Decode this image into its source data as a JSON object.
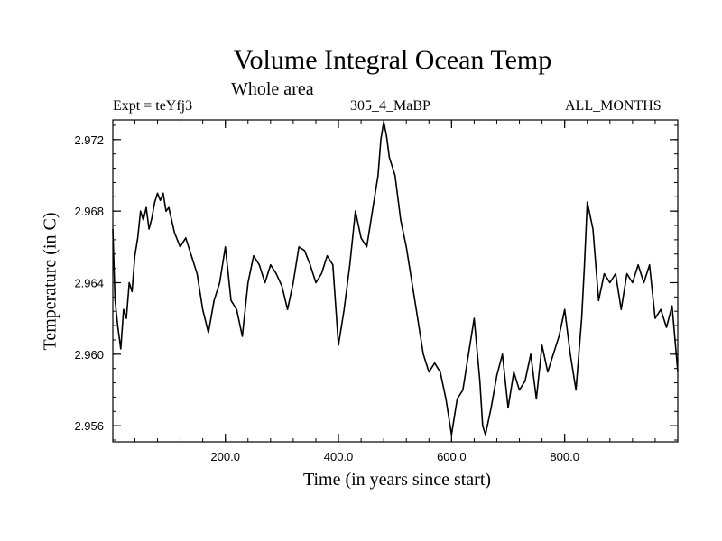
{
  "colors": {
    "line": "#000000",
    "axes": "#000000",
    "background": "#ffffff"
  },
  "chart_data": {
    "type": "line",
    "title": "Volume Integral Ocean Temp",
    "subtitle": "Whole area",
    "expt_label": "Expt = teYfj3",
    "run_label": "305_4_MaBP",
    "months_label": "ALL_MONTHS",
    "xlabel": "Time (in years since start)",
    "ylabel": "Temperature (in C)",
    "xlim": [
      1,
      1000
    ],
    "ylim": [
      2.9551,
      2.9731
    ],
    "xticks": [
      200,
      400,
      600,
      800
    ],
    "xtick_labels": [
      "200.0",
      "400.0",
      "600.0",
      "800.0"
    ],
    "yticks": [
      2.956,
      2.96,
      2.964,
      2.968,
      2.972
    ],
    "ytick_labels": [
      "2.956",
      "2.960",
      "2.964",
      "2.968",
      "2.972"
    ],
    "grid": false,
    "series": [
      {
        "name": "Volume Integral Ocean Temp",
        "x": [
          1,
          5,
          10,
          15,
          20,
          25,
          30,
          35,
          40,
          45,
          50,
          55,
          60,
          65,
          70,
          75,
          80,
          85,
          90,
          95,
          100,
          110,
          120,
          130,
          140,
          150,
          160,
          170,
          180,
          190,
          200,
          210,
          220,
          230,
          240,
          250,
          260,
          270,
          280,
          290,
          300,
          310,
          320,
          330,
          340,
          350,
          360,
          370,
          380,
          390,
          400,
          410,
          420,
          430,
          440,
          450,
          460,
          470,
          475,
          480,
          485,
          490,
          500,
          510,
          520,
          530,
          540,
          550,
          560,
          570,
          580,
          590,
          600,
          610,
          620,
          630,
          640,
          650,
          655,
          660,
          670,
          680,
          690,
          700,
          710,
          720,
          730,
          740,
          750,
          760,
          770,
          780,
          790,
          800,
          810,
          820,
          830,
          835,
          840,
          850,
          860,
          870,
          880,
          890,
          900,
          910,
          920,
          930,
          940,
          950,
          960,
          970,
          980,
          990,
          1000
        ],
        "values": [
          2.967,
          2.963,
          2.9615,
          2.9603,
          2.9625,
          2.962,
          2.964,
          2.9635,
          2.9655,
          2.9665,
          2.968,
          2.9675,
          2.9682,
          2.967,
          2.9676,
          2.9685,
          2.969,
          2.9686,
          2.969,
          2.968,
          2.9682,
          2.9668,
          2.966,
          2.9665,
          2.9655,
          2.9645,
          2.9625,
          2.9612,
          2.963,
          2.964,
          2.966,
          2.963,
          2.9625,
          2.961,
          2.964,
          2.9655,
          2.965,
          2.964,
          2.965,
          2.9645,
          2.9638,
          2.9625,
          2.964,
          2.966,
          2.9658,
          2.965,
          2.964,
          2.9645,
          2.9655,
          2.965,
          2.9605,
          2.9625,
          2.965,
          2.968,
          2.9665,
          2.966,
          2.968,
          2.97,
          2.972,
          2.973,
          2.9722,
          2.971,
          2.97,
          2.9675,
          2.966,
          2.964,
          2.962,
          2.96,
          2.959,
          2.9595,
          2.959,
          2.9575,
          2.9555,
          2.9575,
          2.958,
          2.96,
          2.962,
          2.9585,
          2.956,
          2.9555,
          2.957,
          2.9588,
          2.96,
          2.957,
          2.959,
          2.958,
          2.9585,
          2.96,
          2.9575,
          2.9605,
          2.959,
          2.96,
          2.961,
          2.9625,
          2.96,
          2.958,
          2.962,
          2.965,
          2.9685,
          2.967,
          2.963,
          2.9645,
          2.964,
          2.9645,
          2.9625,
          2.9645,
          2.964,
          2.965,
          2.964,
          2.965,
          2.962,
          2.9625,
          2.9615,
          2.9627,
          2.959
        ]
      }
    ]
  }
}
